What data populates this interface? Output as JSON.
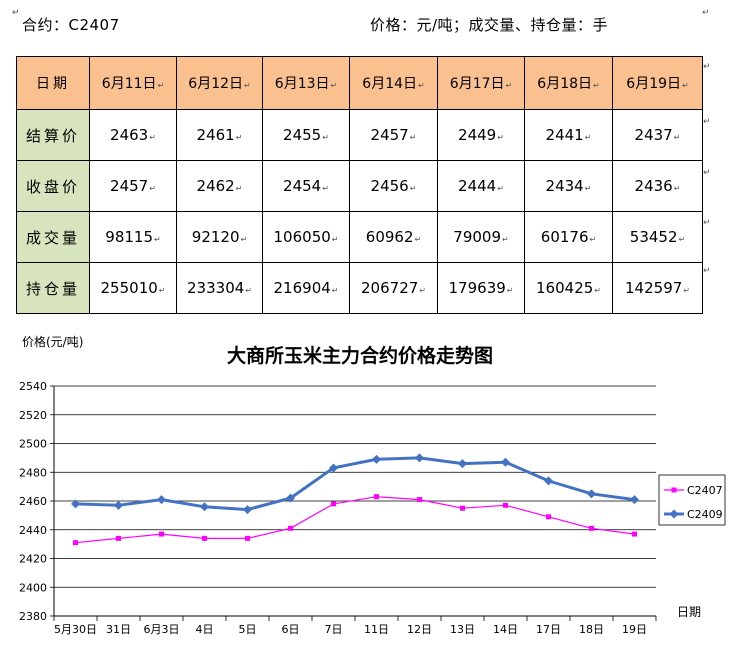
{
  "header": {
    "contract": "合约：C2407",
    "units": "价格：元/吨；成交量、持仓量：手"
  },
  "table": {
    "corner": "日期",
    "dates": [
      "6月11日",
      "6月12日",
      "6月13日",
      "6月14日",
      "6月17日",
      "6月18日",
      "6月19日"
    ],
    "rows": [
      {
        "label": "结算价",
        "values": [
          "2463",
          "2461",
          "2455",
          "2457",
          "2449",
          "2441",
          "2437"
        ]
      },
      {
        "label": "收盘价",
        "values": [
          "2457",
          "2462",
          "2454",
          "2456",
          "2444",
          "2434",
          "2436"
        ]
      },
      {
        "label": "成交量",
        "values": [
          "98115",
          "92120",
          "106050",
          "60962",
          "79009",
          "60176",
          "53452"
        ]
      },
      {
        "label": "持仓量",
        "values": [
          "255010",
          "233304",
          "216904",
          "206727",
          "179639",
          "160425",
          "142597"
        ]
      }
    ]
  },
  "chart_data": {
    "type": "line",
    "title": "大商所玉米主力合约价格走势图",
    "ylabel": "价格(元/吨)",
    "xlabel": "日期",
    "categories": [
      "5月30日",
      "31日",
      "6月3日",
      "4日",
      "5日",
      "6日",
      "7日",
      "11日",
      "12日",
      "13日",
      "14日",
      "17日",
      "18日",
      "19日"
    ],
    "ylim": [
      2380,
      2540
    ],
    "ystep": 20,
    "grid": true,
    "legend": "right",
    "series": [
      {
        "name": "C2407",
        "color": "#FF00FF",
        "marker": "square",
        "values": [
          2431,
          2434,
          2437,
          2434,
          2434,
          2441,
          2458,
          2463,
          2461,
          2455,
          2457,
          2449,
          2441,
          2437
        ]
      },
      {
        "name": "C2409",
        "color": "#4372C4",
        "marker": "diamond",
        "values": [
          2458,
          2457,
          2461,
          2456,
          2454,
          2462,
          2483,
          2489,
          2490,
          2486,
          2487,
          2474,
          2465,
          2461
        ]
      }
    ]
  }
}
